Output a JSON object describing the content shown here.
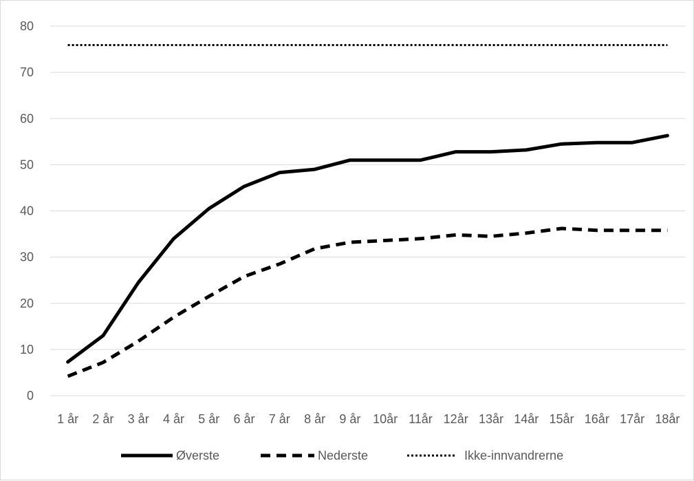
{
  "chart_data": {
    "type": "line",
    "categories": [
      "1 år",
      "2 år",
      "3 år",
      "4 år",
      "5 år",
      "6 år",
      "7 år",
      "8 år",
      "9 år",
      "10år",
      "11år",
      "12år",
      "13år",
      "14år",
      "15år",
      "16år",
      "17år",
      "18år"
    ],
    "series": [
      {
        "name": "Øverste",
        "style": "solid",
        "values": [
          7.3,
          13,
          24.5,
          34,
          40.5,
          45.3,
          48.3,
          49,
          51,
          51,
          51,
          52.8,
          52.8,
          53.2,
          54.5,
          54.8,
          54.8,
          56.3
        ]
      },
      {
        "name": "Nederste",
        "style": "dashed",
        "values": [
          4.2,
          7.2,
          11.8,
          17,
          21.5,
          25.8,
          28.5,
          31.8,
          33.2,
          33.6,
          34,
          34.8,
          34.5,
          35.2,
          36.2,
          35.8,
          35.8,
          35.8
        ]
      },
      {
        "name": "Ikke-innvandrerne",
        "style": "dotted",
        "values": [
          75.9,
          75.9,
          75.9,
          75.9,
          75.9,
          75.9,
          75.9,
          75.9,
          75.9,
          75.9,
          75.9,
          75.9,
          75.9,
          75.9,
          75.9,
          75.9,
          75.9,
          75.9
        ]
      }
    ],
    "yticks": [
      "0",
      "10",
      "20",
      "30",
      "40",
      "50",
      "60",
      "70",
      "80"
    ],
    "ylim": [
      0,
      80
    ],
    "grid": true,
    "legend_position": "bottom",
    "colors": {
      "line": "#000000",
      "grid": "#d9d9d9",
      "text": "#595959"
    }
  }
}
